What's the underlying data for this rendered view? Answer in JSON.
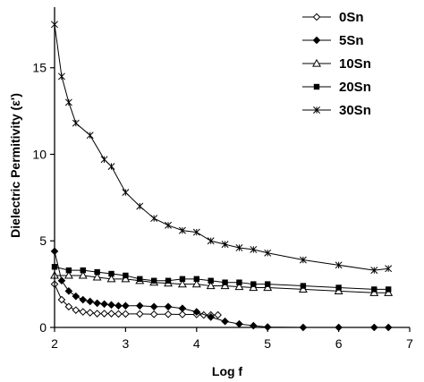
{
  "chart_data": {
    "type": "line",
    "title": "",
    "xlabel": "Log f",
    "ylabel": "Dielectric Permitivity (ε')",
    "xlim": [
      2,
      7
    ],
    "ylim": [
      0,
      18.5
    ],
    "xticks": [
      2,
      3,
      4,
      5,
      6,
      7
    ],
    "yticks": [
      0,
      5,
      10,
      15
    ],
    "grid": false,
    "legend_position": "top-right",
    "series": [
      {
        "name": "0Sn",
        "marker": "open-diamond",
        "x": [
          2.0,
          2.1,
          2.2,
          2.3,
          2.4,
          2.5,
          2.6,
          2.7,
          2.8,
          2.9,
          3.0,
          3.2,
          3.4,
          3.6,
          3.8,
          4.0,
          4.1,
          4.2,
          4.3
        ],
        "y": [
          2.5,
          1.6,
          1.2,
          1.0,
          0.9,
          0.85,
          0.8,
          0.8,
          0.8,
          0.78,
          0.78,
          0.78,
          0.76,
          0.76,
          0.75,
          0.75,
          0.72,
          0.72,
          0.72
        ]
      },
      {
        "name": "5Sn",
        "marker": "filled-diamond",
        "x": [
          2.0,
          2.1,
          2.2,
          2.3,
          2.4,
          2.5,
          2.6,
          2.7,
          2.8,
          2.9,
          3.0,
          3.2,
          3.4,
          3.6,
          3.8,
          4.0,
          4.2,
          4.4,
          4.6,
          4.8,
          5.0,
          5.5,
          6.0,
          6.5,
          6.7
        ],
        "y": [
          4.4,
          2.7,
          2.1,
          1.8,
          1.6,
          1.5,
          1.4,
          1.35,
          1.3,
          1.25,
          1.25,
          1.25,
          1.2,
          1.2,
          1.1,
          0.9,
          0.6,
          0.35,
          0.2,
          0.1,
          0.02,
          0.0,
          0.0,
          0.0,
          0.0
        ]
      },
      {
        "name": "10Sn",
        "marker": "open-triangle",
        "x": [
          2.0,
          2.2,
          2.4,
          2.6,
          2.8,
          3.0,
          3.2,
          3.4,
          3.6,
          3.8,
          4.0,
          4.2,
          4.4,
          4.6,
          4.8,
          5.0,
          5.5,
          6.0,
          6.5,
          6.7
        ],
        "y": [
          3.0,
          3.0,
          3.0,
          2.9,
          2.8,
          2.8,
          2.7,
          2.6,
          2.55,
          2.5,
          2.5,
          2.4,
          2.4,
          2.35,
          2.3,
          2.3,
          2.2,
          2.1,
          2.0,
          2.0
        ]
      },
      {
        "name": "20Sn",
        "marker": "filled-square",
        "x": [
          2.0,
          2.2,
          2.4,
          2.6,
          2.8,
          3.0,
          3.2,
          3.4,
          3.6,
          3.8,
          4.0,
          4.2,
          4.4,
          4.6,
          4.8,
          5.0,
          5.5,
          6.0,
          6.5,
          6.7
        ],
        "y": [
          3.5,
          3.3,
          3.3,
          3.2,
          3.1,
          3.0,
          2.8,
          2.7,
          2.7,
          2.8,
          2.8,
          2.7,
          2.6,
          2.6,
          2.5,
          2.5,
          2.4,
          2.3,
          2.2,
          2.2
        ]
      },
      {
        "name": "30Sn",
        "marker": "star",
        "x": [
          2.0,
          2.1,
          2.2,
          2.3,
          2.5,
          2.7,
          2.8,
          3.0,
          3.2,
          3.4,
          3.6,
          3.8,
          4.0,
          4.2,
          4.4,
          4.6,
          4.8,
          5.0,
          5.5,
          6.0,
          6.5,
          6.7
        ],
        "y": [
          17.5,
          14.5,
          13.0,
          11.8,
          11.1,
          9.7,
          9.3,
          7.8,
          7.0,
          6.3,
          5.9,
          5.6,
          5.5,
          5.0,
          4.8,
          4.6,
          4.5,
          4.3,
          3.9,
          3.6,
          3.3,
          3.4
        ]
      }
    ]
  },
  "axes": {
    "x_tick_labels": [
      "2",
      "3",
      "4",
      "5",
      "6",
      "7"
    ],
    "y_tick_labels": [
      "0",
      "5",
      "10",
      "15"
    ]
  }
}
